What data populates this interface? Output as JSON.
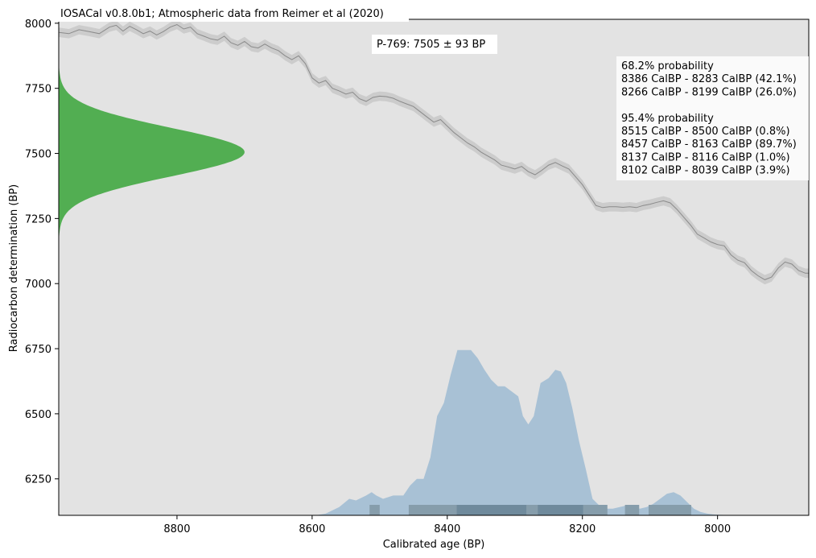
{
  "chart_data": {
    "type": "area",
    "title": "IOSACal v0.8.0b1; Atmospheric data from Reimer et al (2020)",
    "sample_label": "P-769: 7505 ± 93 BP",
    "xlabel": "Calibrated age (BP)",
    "ylabel": "Radiocarbon determination (BP)",
    "xlim": [
      8975,
      7865
    ],
    "ylim": [
      6110,
      8015
    ],
    "x_reversed": true,
    "grid": false,
    "colors": {
      "plot_background": "#e3e3e3",
      "radiocarbon_distribution": "#52ae52",
      "calibrated_distribution": "#a8c1d5",
      "interval_68": "#6f8a9c",
      "interval_95": "#869dab",
      "calibration_band": "#cccccc",
      "calibration_line": "#8a8a8a"
    },
    "xticks": [
      8800,
      8600,
      8400,
      8200,
      8000
    ],
    "yticks": [
      6250,
      6500,
      6750,
      7000,
      7250,
      7500,
      7750,
      8000
    ],
    "radiocarbon_measurement": {
      "mean": 7505,
      "sd": 93
    },
    "calibration_curve": {
      "name": "Atmospheric data from Reimer et al (2020)",
      "x": [
        8975,
        8960,
        8945,
        8930,
        8915,
        8900,
        8890,
        8880,
        8870,
        8860,
        8850,
        8840,
        8830,
        8820,
        8810,
        8800,
        8790,
        8780,
        8770,
        8760,
        8750,
        8740,
        8730,
        8720,
        8710,
        8700,
        8690,
        8680,
        8670,
        8660,
        8650,
        8640,
        8630,
        8620,
        8610,
        8600,
        8590,
        8580,
        8570,
        8560,
        8550,
        8540,
        8530,
        8520,
        8510,
        8500,
        8490,
        8480,
        8470,
        8460,
        8450,
        8440,
        8430,
        8420,
        8410,
        8400,
        8390,
        8380,
        8370,
        8360,
        8350,
        8340,
        8330,
        8320,
        8310,
        8300,
        8290,
        8280,
        8270,
        8260,
        8250,
        8240,
        8230,
        8220,
        8210,
        8200,
        8190,
        8180,
        8170,
        8160,
        8150,
        8140,
        8130,
        8120,
        8110,
        8100,
        8090,
        8080,
        8070,
        8060,
        8050,
        8040,
        8030,
        8020,
        8010,
        8000,
        7990,
        7980,
        7970,
        7960,
        7950,
        7940,
        7930,
        7920,
        7910,
        7900,
        7890,
        7880,
        7870,
        7865
      ],
      "y": [
        7965,
        7960,
        7975,
        7968,
        7960,
        7985,
        7992,
        7970,
        7988,
        7975,
        7960,
        7970,
        7955,
        7968,
        7985,
        7995,
        7978,
        7985,
        7960,
        7950,
        7940,
        7935,
        7950,
        7925,
        7915,
        7930,
        7910,
        7905,
        7920,
        7905,
        7895,
        7875,
        7860,
        7875,
        7845,
        7790,
        7770,
        7780,
        7750,
        7740,
        7728,
        7735,
        7710,
        7700,
        7715,
        7720,
        7718,
        7712,
        7700,
        7690,
        7680,
        7660,
        7640,
        7620,
        7630,
        7605,
        7580,
        7560,
        7540,
        7525,
        7505,
        7490,
        7475,
        7455,
        7448,
        7440,
        7450,
        7430,
        7418,
        7435,
        7455,
        7465,
        7452,
        7440,
        7410,
        7380,
        7340,
        7300,
        7292,
        7295,
        7295,
        7293,
        7295,
        7292,
        7300,
        7305,
        7312,
        7318,
        7310,
        7285,
        7255,
        7225,
        7190,
        7175,
        7160,
        7150,
        7145,
        7110,
        7090,
        7080,
        7050,
        7030,
        7015,
        7025,
        7060,
        7083,
        7075,
        7050,
        7040,
        7040
      ],
      "band_halfwidth": 18
    },
    "calibrated_distribution": {
      "x": [
        8595,
        8580,
        8560,
        8545,
        8535,
        8520,
        8512,
        8505,
        8495,
        8480,
        8465,
        8455,
        8445,
        8435,
        8425,
        8415,
        8405,
        8395,
        8385,
        8375,
        8365,
        8355,
        8345,
        8335,
        8325,
        8315,
        8305,
        8295,
        8288,
        8280,
        8272,
        8262,
        8250,
        8240,
        8232,
        8224,
        8215,
        8205,
        8195,
        8185,
        8175,
        8165,
        8155,
        8145,
        8135,
        8125,
        8115,
        8105,
        8095,
        8085,
        8075,
        8065,
        8055,
        8045,
        8035,
        8025,
        8015,
        8005,
        7995,
        7985,
        7975
      ],
      "density": [
        0.0,
        0.01,
        0.05,
        0.1,
        0.09,
        0.12,
        0.14,
        0.12,
        0.1,
        0.12,
        0.12,
        0.18,
        0.22,
        0.22,
        0.35,
        0.6,
        0.68,
        0.85,
        1.0,
        1.0,
        1.0,
        0.95,
        0.88,
        0.82,
        0.78,
        0.78,
        0.75,
        0.72,
        0.6,
        0.55,
        0.6,
        0.8,
        0.83,
        0.88,
        0.87,
        0.8,
        0.65,
        0.45,
        0.28,
        0.1,
        0.06,
        0.04,
        0.04,
        0.05,
        0.06,
        0.05,
        0.04,
        0.05,
        0.07,
        0.1,
        0.13,
        0.14,
        0.12,
        0.08,
        0.04,
        0.02,
        0.01,
        0.005,
        0.003,
        0.002,
        0.0
      ]
    },
    "intervals_68": [
      {
        "from": 8386,
        "to": 8283,
        "percent": 42.1
      },
      {
        "from": 8266,
        "to": 8199,
        "percent": 26.0
      }
    ],
    "intervals_95": [
      {
        "from": 8515,
        "to": 8500,
        "percent": 0.8
      },
      {
        "from": 8457,
        "to": 8163,
        "percent": 89.7
      },
      {
        "from": 8137,
        "to": 8116,
        "percent": 1.0
      },
      {
        "from": 8102,
        "to": 8039,
        "percent": 3.9
      }
    ],
    "annotation_lines": [
      "68.2% probability",
      "8386 CalBP - 8283 CalBP (42.1%)",
      "8266 CalBP - 8199 CalBP (26.0%)",
      "",
      "95.4% probability",
      "8515 CalBP - 8500 CalBP (0.8%)",
      "8457 CalBP - 8163 CalBP (89.7%)",
      "8137 CalBP - 8116 CalBP (1.0%)",
      "8102 CalBP - 8039 CalBP (3.9%)"
    ]
  }
}
